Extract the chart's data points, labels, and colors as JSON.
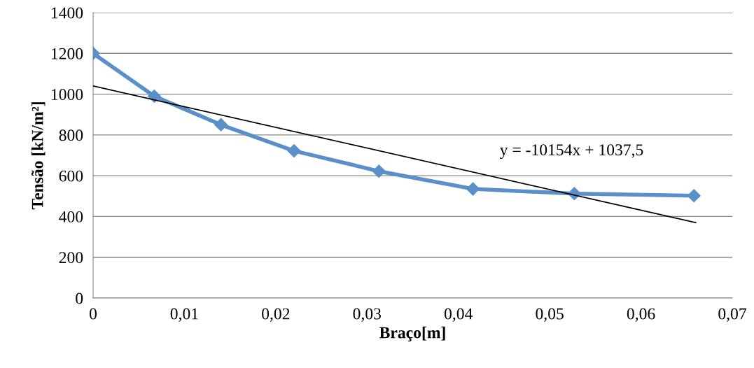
{
  "chart_data": {
    "type": "line",
    "xlabel": "Braço[m]",
    "ylabel": "Tensão [kN/m²]",
    "series": [
      {
        "color": "#5b8fc9",
        "marker": "diamond",
        "x": [
          0,
          0.0067,
          0.014,
          0.022,
          0.0313,
          0.0416,
          0.0527,
          0.0658
        ],
        "values": [
          1200,
          990,
          850,
          722,
          622,
          535,
          512,
          502
        ]
      },
      {
        "type": "line",
        "color": "#000000",
        "marker": "none",
        "x": [
          0,
          0.066
        ],
        "values": [
          1040,
          370
        ]
      }
    ],
    "annotations": [
      "y = -10154x + 1037,5"
    ],
    "xlim": [
      0,
      0.07
    ],
    "xticks": [
      0,
      {
        "value": 0.01,
        "label": "0,01"
      },
      {
        "value": 0.02,
        "label": "0,02"
      },
      {
        "value": 0.03,
        "label": "0,03"
      },
      {
        "value": 0.04,
        "label": "0,04"
      },
      {
        "value": 0.05,
        "label": "0,05"
      },
      {
        "value": 0.06,
        "label": "0,06"
      },
      {
        "value": 0.07,
        "label": "0,07"
      }
    ],
    "ylim": [
      0,
      1400
    ],
    "yticks": [
      0,
      200,
      400,
      600,
      800,
      1000,
      1200,
      1400
    ],
    "grid": "y",
    "legend": false
  }
}
